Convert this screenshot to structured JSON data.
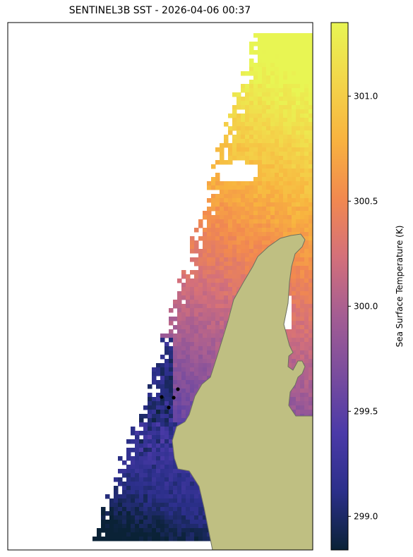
{
  "chart_data": {
    "type": "heatmap",
    "title": "SENTINEL3B SST - 2026-04-06 00:37",
    "colorbar": {
      "label": "Sea Surface Temperature (K)",
      "range": [
        298.84,
        301.35
      ],
      "ticks": [
        299.0,
        299.5,
        300.0,
        300.5,
        301.0
      ],
      "tick_labels": [
        "299.0",
        "299.5",
        "300.0",
        "300.5",
        "301.0"
      ],
      "colormap": [
        "#0a2236",
        "#2b2f8a",
        "#4b3aa8",
        "#7a4d9e",
        "#a45d93",
        "#d4707a",
        "#f2894f",
        "#f8b33f",
        "#f3d64a",
        "#e8f553"
      ]
    },
    "grid": false,
    "markers": 4,
    "colors": {
      "land": "#bfbf82",
      "coast": "#6e7060",
      "marker": "#000000"
    }
  }
}
